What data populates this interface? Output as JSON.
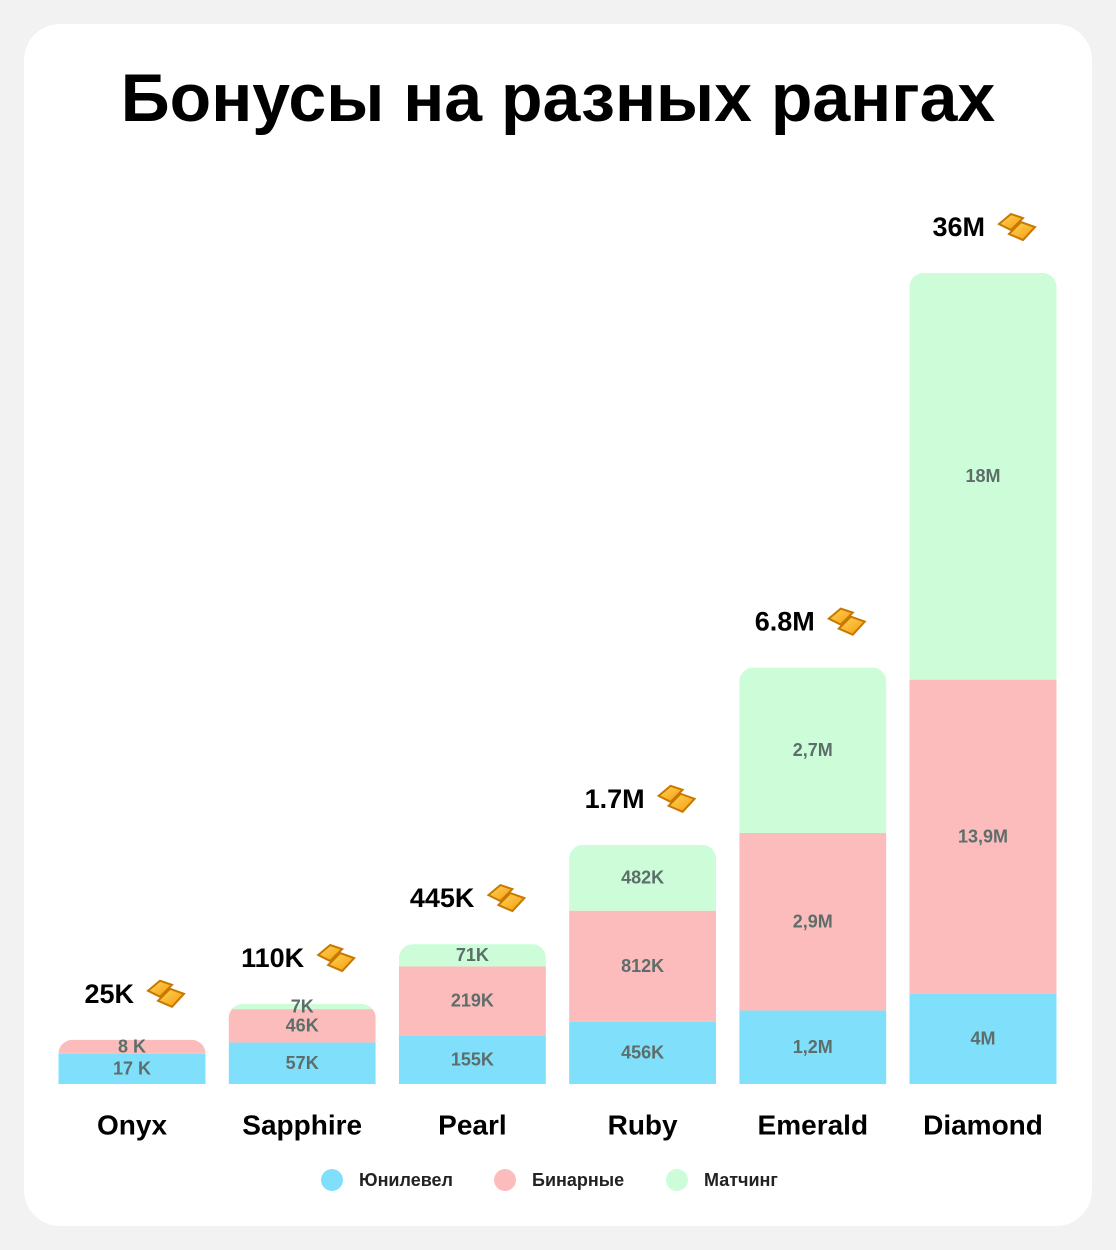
{
  "chart_data": {
    "type": "stacked-bar",
    "title": "Бонусы на разных рангах",
    "categories": [
      "Onyx",
      "Sapphire",
      "Pearl",
      "Ruby",
      "Emerald",
      "Diamond"
    ],
    "series": [
      {
        "name": "Юнилевел",
        "color": "#80dffb",
        "values": [
          17000,
          57000,
          155000,
          456000,
          1200000,
          4000000
        ],
        "value_labels": [
          "17 K",
          "57K",
          "155K",
          "456K",
          "1,2M",
          "4M"
        ]
      },
      {
        "name": "Бинарные",
        "color": "#fdbcbc",
        "values": [
          8000,
          46000,
          219000,
          812000,
          2900000,
          13900000
        ],
        "value_labels": [
          "8 K",
          "46K",
          "219K",
          "812K",
          "2,9M",
          "13,9M"
        ]
      },
      {
        "name": "Матчинг",
        "color": "#ccfdd8",
        "values": [
          null,
          7000,
          71000,
          482000,
          2700000,
          18000000
        ],
        "value_labels": [
          null,
          "7K",
          "71K",
          "482K",
          "2,7M",
          "18M"
        ]
      }
    ],
    "totals": {
      "values": [
        25000,
        110000,
        445000,
        1700000,
        6800000,
        36000000
      ],
      "value_labels": [
        "25K",
        "110K",
        "445K",
        "1.7M",
        "6.8M",
        "36M"
      ]
    }
  }
}
